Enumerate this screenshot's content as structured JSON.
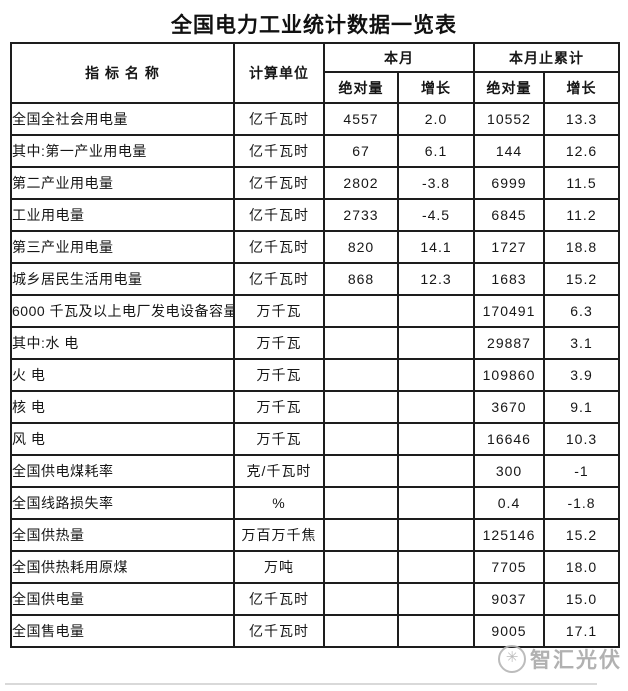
{
  "page": {
    "title": "全国电力工业统计数据一览表"
  },
  "table": {
    "headers": {
      "indicator": "指 标 名 称",
      "unit": "计算单位",
      "month": "本月",
      "cumulative": "本月止累计",
      "month_absolute": "绝对量",
      "month_growth": "增长",
      "cumulative_absolute": "绝对量",
      "cumulative_growth": "增长"
    },
    "rows": [
      {
        "name": "全国全社会用电量",
        "indent": 0,
        "unit": "亿千瓦时",
        "month_absolute": "4557",
        "month_growth": "2.0",
        "cumulative_absolute": "10552",
        "cumulative_growth": "13.3"
      },
      {
        "name": "其中:第一产业用电量",
        "indent": 0,
        "unit": "亿千瓦时",
        "month_absolute": "67",
        "month_growth": "6.1",
        "cumulative_absolute": "144",
        "cumulative_growth": "12.6"
      },
      {
        "name": "第二产业用电量",
        "indent": 2,
        "unit": "亿千瓦时",
        "month_absolute": "2802",
        "month_growth": "-3.8",
        "cumulative_absolute": "6999",
        "cumulative_growth": "11.5"
      },
      {
        "name": "工业用电量",
        "indent": 4,
        "unit": "亿千瓦时",
        "month_absolute": "2733",
        "month_growth": "-4.5",
        "cumulative_absolute": "6845",
        "cumulative_growth": "11.2"
      },
      {
        "name": "第三产业用电量",
        "indent": 2,
        "unit": "亿千瓦时",
        "month_absolute": "820",
        "month_growth": "14.1",
        "cumulative_absolute": "1727",
        "cumulative_growth": "18.8"
      },
      {
        "name": "城乡居民生活用电量",
        "indent": 2,
        "unit": "亿千瓦时",
        "month_absolute": "868",
        "month_growth": "12.3",
        "cumulative_absolute": "1683",
        "cumulative_growth": "15.2"
      },
      {
        "name": "6000 千瓦及以上电厂发电设备容量",
        "indent": 0,
        "unit": "万千瓦",
        "month_absolute": "",
        "month_growth": "",
        "cumulative_absolute": "170491",
        "cumulative_growth": "6.3"
      },
      {
        "name": "其中:水 电",
        "indent": 1,
        "unit": "万千瓦",
        "month_absolute": "",
        "month_growth": "",
        "cumulative_absolute": "29887",
        "cumulative_growth": "3.1"
      },
      {
        "name": "火 电",
        "indent": 3,
        "unit": "万千瓦",
        "month_absolute": "",
        "month_growth": "",
        "cumulative_absolute": "109860",
        "cumulative_growth": "3.9"
      },
      {
        "name": "核 电",
        "indent": 3,
        "unit": "万千瓦",
        "month_absolute": "",
        "month_growth": "",
        "cumulative_absolute": "3670",
        "cumulative_growth": "9.1"
      },
      {
        "name": "风 电",
        "indent": 3,
        "unit": "万千瓦",
        "month_absolute": "",
        "month_growth": "",
        "cumulative_absolute": "16646",
        "cumulative_growth": "10.3"
      },
      {
        "name": "全国供电煤耗率",
        "indent": 0,
        "unit": "克/千瓦时",
        "month_absolute": "",
        "month_growth": "",
        "cumulative_absolute": "300",
        "cumulative_growth": "-1"
      },
      {
        "name": "全国线路损失率",
        "indent": 0,
        "unit": "%",
        "month_absolute": "",
        "month_growth": "",
        "cumulative_absolute": "0.4",
        "cumulative_growth": "-1.8"
      },
      {
        "name": "全国供热量",
        "indent": 0,
        "unit": "万百万千焦",
        "month_absolute": "",
        "month_growth": "",
        "cumulative_absolute": "125146",
        "cumulative_growth": "15.2"
      },
      {
        "name": "全国供热耗用原煤",
        "indent": 0,
        "unit": "万吨",
        "month_absolute": "",
        "month_growth": "",
        "cumulative_absolute": "7705",
        "cumulative_growth": "18.0"
      },
      {
        "name": "全国供电量",
        "indent": 0,
        "unit": "亿千瓦时",
        "month_absolute": "",
        "month_growth": "",
        "cumulative_absolute": "9037",
        "cumulative_growth": "15.0"
      },
      {
        "name": "全国售电量",
        "indent": 0,
        "unit": "亿千瓦时",
        "month_absolute": "",
        "month_growth": "",
        "cumulative_absolute": "9005",
        "cumulative_growth": "17.1"
      }
    ]
  },
  "watermark": {
    "text": "智汇光伏",
    "icon_glyph": "✳",
    "color": "#a9a9a9"
  },
  "colors": {
    "border": "#1d1d1d",
    "text": "#161616",
    "background": "#ffffff"
  }
}
